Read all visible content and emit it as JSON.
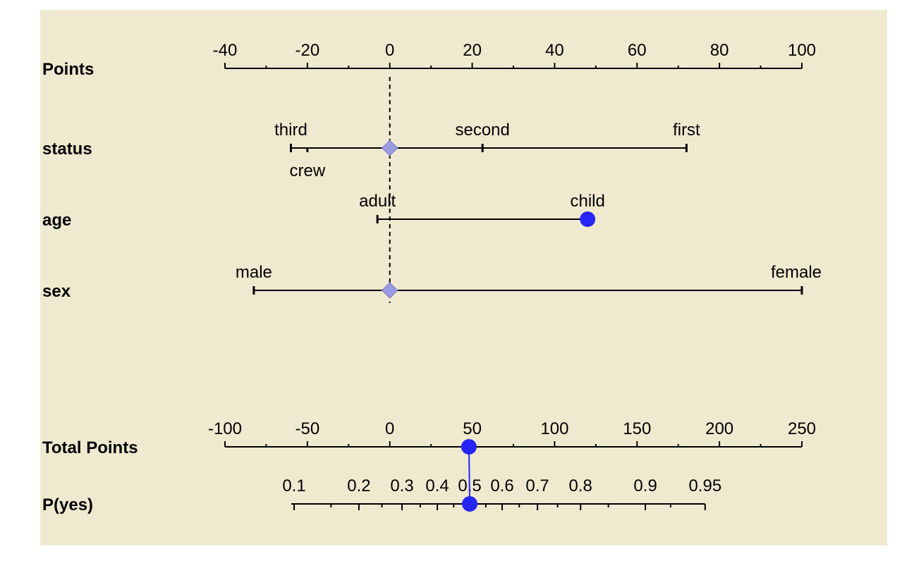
{
  "chart_data": {
    "type": "nomogram",
    "rows": [
      {
        "label": "Points",
        "kind": "scale",
        "ticks": [
          -40,
          -20,
          0,
          20,
          40,
          60,
          80,
          100
        ],
        "minor_step": 10,
        "range": [
          -40,
          100
        ]
      },
      {
        "label": "status",
        "kind": "variable",
        "levels": [
          {
            "name": "third",
            "points": -24
          },
          {
            "name": "crew",
            "points": -20
          },
          {
            "name": "second",
            "points": 22.5
          },
          {
            "name": "first",
            "points": 72
          }
        ],
        "selected": null
      },
      {
        "label": "age",
        "kind": "variable",
        "levels": [
          {
            "name": "adult",
            "points": -3
          },
          {
            "name": "child",
            "points": 48
          }
        ],
        "selected": "child"
      },
      {
        "label": "sex",
        "kind": "variable",
        "levels": [
          {
            "name": "male",
            "points": -33
          },
          {
            "name": "female",
            "points": 100
          }
        ],
        "selected": null
      },
      {
        "label": "Total Points",
        "kind": "scale",
        "ticks": [
          -100,
          -50,
          0,
          50,
          100,
          150,
          200,
          250
        ],
        "minor_step": 25,
        "range": [
          -100,
          250
        ],
        "value": 48
      },
      {
        "label": "P(yes)",
        "kind": "probability",
        "ticks": [
          0.1,
          0.2,
          0.3,
          0.4,
          0.5,
          0.6,
          0.7,
          0.8,
          0.9,
          0.95
        ],
        "value": 0.5
      }
    ],
    "reference_line_points": 0,
    "colors": {
      "panel": "#efeacf",
      "marker": "#2525f5",
      "neutral_marker": "#9a9ae0"
    }
  }
}
